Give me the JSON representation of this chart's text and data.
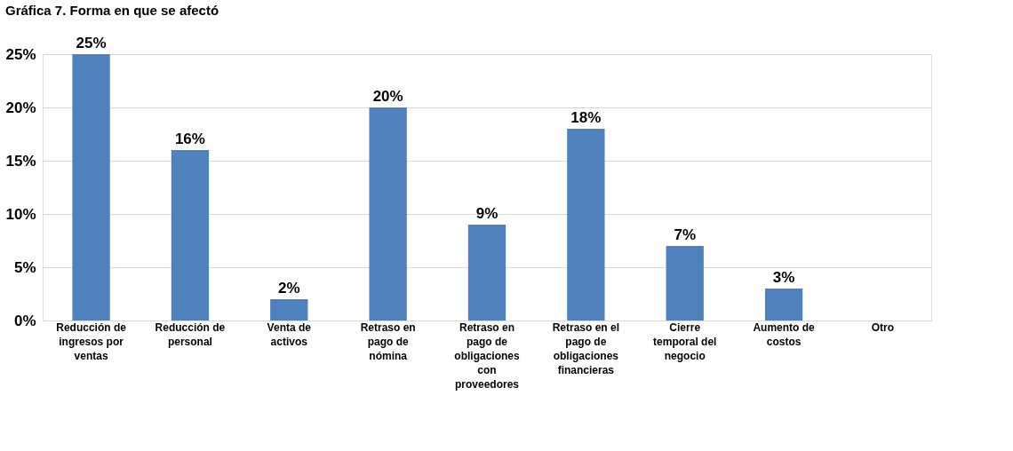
{
  "chart_data": {
    "type": "bar",
    "title": "Gráfica 7. Forma en que se afectó",
    "categories": [
      "Reducción de ingresos por ventas",
      "Reducción de personal",
      "Venta de activos",
      "Retraso en pago de nómina",
      "Retraso en pago de obligaciones con proveedores",
      "Retraso en el pago de obligaciones financieras",
      "Cierre temporal del negocio",
      "Aumento de costos",
      "Otro"
    ],
    "values": [
      25,
      16,
      2,
      20,
      9,
      18,
      7,
      3,
      0
    ],
    "value_labels": [
      "25%",
      "16%",
      "2%",
      "20%",
      "9%",
      "18%",
      "7%",
      "3%",
      null
    ],
    "color": "#4f81bd",
    "ylim": [
      0,
      25
    ],
    "yticks": [
      {
        "value": 0,
        "label": "0%"
      },
      {
        "value": 5,
        "label": "5%"
      },
      {
        "value": 10,
        "label": "10%"
      },
      {
        "value": 15,
        "label": "15%"
      },
      {
        "value": 20,
        "label": "20%"
      },
      {
        "value": 25,
        "label": "25%"
      }
    ],
    "grid": "y"
  }
}
